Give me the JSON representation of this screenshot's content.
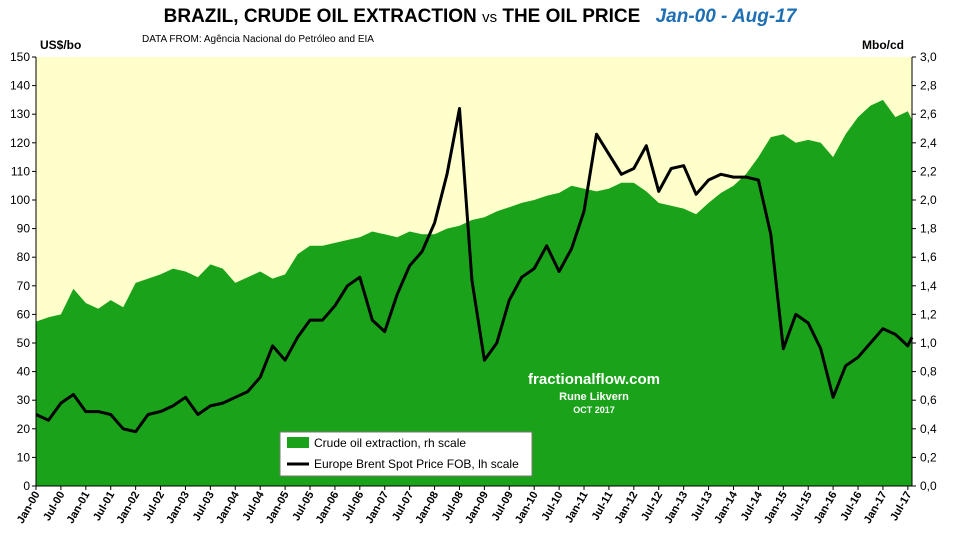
{
  "title": {
    "part1": "BRAZIL, CRUDE OIL EXTRACTION",
    "vs": "vs",
    "part2": "THE OIL PRICE",
    "range": "Jan-00 - Aug-17"
  },
  "source": "DATA FROM: Agência Nacional do Petróleo  and EIA",
  "annotation": {
    "site": "fractionalflow.com",
    "author": "Rune Likvern",
    "date": "OCT 2017"
  },
  "colors": {
    "plot_bg": "#ffffcc",
    "area": "#1aa31a",
    "line": "#000000",
    "title_range": "#1f6fb5"
  },
  "chart_data": {
    "type": "area",
    "xlabel": "",
    "ylabel_left": "US$/bo",
    "ylabel_right": "Mbo/cd",
    "ylim_left": [
      0,
      150
    ],
    "ylim_right": [
      0,
      3.0
    ],
    "yticks_left": [
      "0",
      "10",
      "20",
      "30",
      "40",
      "50",
      "60",
      "70",
      "80",
      "90",
      "100",
      "110",
      "120",
      "130",
      "140",
      "150"
    ],
    "yticks_right": [
      "0,0",
      "0,2",
      "0,4",
      "0,6",
      "0,8",
      "1,0",
      "1,2",
      "1,4",
      "1,6",
      "1,8",
      "2,0",
      "2,2",
      "2,4",
      "2,6",
      "2,8",
      "3,0"
    ],
    "x_tick_labels": [
      "Jan-00",
      "Jul-00",
      "Jan-01",
      "Jul-01",
      "Jan-02",
      "Jul-02",
      "Jan-03",
      "Jul-03",
      "Jan-04",
      "Jul-04",
      "Jan-05",
      "Jul-05",
      "Jan-06",
      "Jul-06",
      "Jan-07",
      "Jul-07",
      "Jan-08",
      "Jul-08",
      "Jan-09",
      "Jul-09",
      "Jan-10",
      "Jul-10",
      "Jan-11",
      "Jul-11",
      "Jan-12",
      "Jul-12",
      "Jan-13",
      "Jul-13",
      "Jan-14",
      "Jul-14",
      "Jan-15",
      "Jul-15",
      "Jan-16",
      "Jul-16",
      "Jan-17",
      "Jul-17"
    ],
    "grid": false,
    "legend_position": "bottom-center",
    "series": [
      {
        "name": "Crude oil extraction, rh scale",
        "type": "area",
        "axis": "right",
        "unit": "Mbo/cd",
        "points": [
          [
            "Jan-00",
            1.15
          ],
          [
            "Apr-00",
            1.18
          ],
          [
            "Jul-00",
            1.2
          ],
          [
            "Oct-00",
            1.38
          ],
          [
            "Jan-01",
            1.28
          ],
          [
            "Apr-01",
            1.24
          ],
          [
            "Jul-01",
            1.3
          ],
          [
            "Oct-01",
            1.25
          ],
          [
            "Jan-02",
            1.42
          ],
          [
            "Apr-02",
            1.45
          ],
          [
            "Jul-02",
            1.48
          ],
          [
            "Oct-02",
            1.52
          ],
          [
            "Jan-03",
            1.5
          ],
          [
            "Apr-03",
            1.46
          ],
          [
            "Jul-03",
            1.55
          ],
          [
            "Oct-03",
            1.52
          ],
          [
            "Jan-04",
            1.42
          ],
          [
            "Apr-04",
            1.46
          ],
          [
            "Jul-04",
            1.5
          ],
          [
            "Oct-04",
            1.45
          ],
          [
            "Jan-05",
            1.48
          ],
          [
            "Apr-05",
            1.62
          ],
          [
            "Jul-05",
            1.68
          ],
          [
            "Oct-05",
            1.68
          ],
          [
            "Jan-06",
            1.7
          ],
          [
            "Apr-06",
            1.72
          ],
          [
            "Jul-06",
            1.74
          ],
          [
            "Oct-06",
            1.78
          ],
          [
            "Jan-07",
            1.76
          ],
          [
            "Apr-07",
            1.74
          ],
          [
            "Jul-07",
            1.78
          ],
          [
            "Oct-07",
            1.76
          ],
          [
            "Jan-08",
            1.76
          ],
          [
            "Apr-08",
            1.8
          ],
          [
            "Jul-08",
            1.82
          ],
          [
            "Oct-08",
            1.86
          ],
          [
            "Jan-09",
            1.88
          ],
          [
            "Apr-09",
            1.92
          ],
          [
            "Jul-09",
            1.95
          ],
          [
            "Oct-09",
            1.98
          ],
          [
            "Jan-10",
            2.0
          ],
          [
            "Apr-10",
            2.03
          ],
          [
            "Jul-10",
            2.05
          ],
          [
            "Oct-10",
            2.1
          ],
          [
            "Jan-11",
            2.08
          ],
          [
            "Apr-11",
            2.06
          ],
          [
            "Jul-11",
            2.08
          ],
          [
            "Oct-11",
            2.12
          ],
          [
            "Jan-12",
            2.12
          ],
          [
            "Apr-12",
            2.06
          ],
          [
            "Jul-12",
            1.98
          ],
          [
            "Oct-12",
            1.96
          ],
          [
            "Jan-13",
            1.94
          ],
          [
            "Apr-13",
            1.9
          ],
          [
            "Jul-13",
            1.98
          ],
          [
            "Oct-13",
            2.05
          ],
          [
            "Jan-14",
            2.1
          ],
          [
            "Apr-14",
            2.18
          ],
          [
            "Jul-14",
            2.3
          ],
          [
            "Oct-14",
            2.44
          ],
          [
            "Jan-15",
            2.46
          ],
          [
            "Apr-15",
            2.4
          ],
          [
            "Jul-15",
            2.42
          ],
          [
            "Oct-15",
            2.4
          ],
          [
            "Jan-16",
            2.3
          ],
          [
            "Apr-16",
            2.46
          ],
          [
            "Jul-16",
            2.58
          ],
          [
            "Oct-16",
            2.66
          ],
          [
            "Jan-17",
            2.7
          ],
          [
            "Apr-17",
            2.58
          ],
          [
            "Jul-17",
            2.62
          ],
          [
            "Aug-17",
            2.56
          ]
        ]
      },
      {
        "name": "Europe Brent Spot Price FOB, lh scale",
        "type": "line",
        "axis": "left",
        "unit": "US$/bo",
        "points": [
          [
            "Jan-00",
            25
          ],
          [
            "Apr-00",
            23
          ],
          [
            "Jul-00",
            29
          ],
          [
            "Oct-00",
            32
          ],
          [
            "Jan-01",
            26
          ],
          [
            "Apr-01",
            26
          ],
          [
            "Jul-01",
            25
          ],
          [
            "Oct-01",
            20
          ],
          [
            "Jan-02",
            19
          ],
          [
            "Apr-02",
            25
          ],
          [
            "Jul-02",
            26
          ],
          [
            "Oct-02",
            28
          ],
          [
            "Jan-03",
            31
          ],
          [
            "Apr-03",
            25
          ],
          [
            "Jul-03",
            28
          ],
          [
            "Oct-03",
            29
          ],
          [
            "Jan-04",
            31
          ],
          [
            "Apr-04",
            33
          ],
          [
            "Jul-04",
            38
          ],
          [
            "Oct-04",
            49
          ],
          [
            "Jan-05",
            44
          ],
          [
            "Apr-05",
            52
          ],
          [
            "Jul-05",
            58
          ],
          [
            "Oct-05",
            58
          ],
          [
            "Jan-06",
            63
          ],
          [
            "Apr-06",
            70
          ],
          [
            "Jul-06",
            73
          ],
          [
            "Oct-06",
            58
          ],
          [
            "Jan-07",
            54
          ],
          [
            "Apr-07",
            67
          ],
          [
            "Jul-07",
            77
          ],
          [
            "Oct-07",
            82
          ],
          [
            "Jan-08",
            92
          ],
          [
            "Apr-08",
            109
          ],
          [
            "Jul-08",
            132
          ],
          [
            "Oct-08",
            72
          ],
          [
            "Jan-09",
            44
          ],
          [
            "Apr-09",
            50
          ],
          [
            "Jul-09",
            65
          ],
          [
            "Oct-09",
            73
          ],
          [
            "Jan-10",
            76
          ],
          [
            "Apr-10",
            84
          ],
          [
            "Jul-10",
            75
          ],
          [
            "Oct-10",
            83
          ],
          [
            "Jan-11",
            96
          ],
          [
            "Apr-11",
            123
          ],
          [
            "Jul-11",
            116
          ],
          [
            "Oct-11",
            109
          ],
          [
            "Jan-12",
            111
          ],
          [
            "Apr-12",
            119
          ],
          [
            "Jul-12",
            103
          ],
          [
            "Oct-12",
            111
          ],
          [
            "Jan-13",
            112
          ],
          [
            "Apr-13",
            102
          ],
          [
            "Jul-13",
            107
          ],
          [
            "Oct-13",
            109
          ],
          [
            "Jan-14",
            108
          ],
          [
            "Apr-14",
            108
          ],
          [
            "Jul-14",
            107
          ],
          [
            "Oct-14",
            88
          ],
          [
            "Jan-15",
            48
          ],
          [
            "Apr-15",
            60
          ],
          [
            "Jul-15",
            57
          ],
          [
            "Oct-15",
            48
          ],
          [
            "Jan-16",
            31
          ],
          [
            "Apr-16",
            42
          ],
          [
            "Jul-16",
            45
          ],
          [
            "Oct-16",
            50
          ],
          [
            "Jan-17",
            55
          ],
          [
            "Apr-17",
            53
          ],
          [
            "Jul-17",
            49
          ],
          [
            "Aug-17",
            52
          ]
        ]
      }
    ]
  }
}
